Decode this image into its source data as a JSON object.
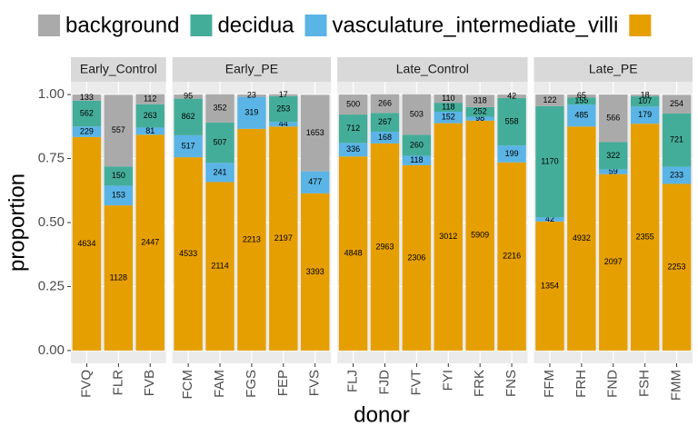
{
  "chart_data": {
    "type": "bar",
    "stacked": true,
    "x_label": "donor",
    "y_label": "proportion",
    "ylim": [
      -0.05,
      1.05
    ],
    "yticks": [
      {
        "value": 0,
        "label": "0.00"
      },
      {
        "value": 0.25,
        "label": "0.25"
      },
      {
        "value": 0.5,
        "label": "0.50"
      },
      {
        "value": 0.75,
        "label": "0.75"
      },
      {
        "value": 1,
        "label": "1.00"
      }
    ],
    "grid": true,
    "legend": "top",
    "series": [
      {
        "name": "background",
        "color": "#aaaaaa"
      },
      {
        "name": "decidua",
        "color": "#44ad99"
      },
      {
        "name": "vasculature_intermediate_villi",
        "color": "#5ab4e5"
      },
      {
        "color": "#e69f00"
      }
    ],
    "facets": [
      {
        "title": "Early_Control",
        "categories": [
          "FVQ",
          "FLR",
          "FVB"
        ],
        "series": [
          {
            "values": [
              0.024,
              0.28,
              0.039
            ],
            "counts": [
              133,
              557,
              112
            ]
          },
          {
            "values": [
              0.101,
              0.075,
              0.091
            ],
            "counts": [
              562,
              150,
              263
            ]
          },
          {
            "values": [
              0.041,
              0.077,
              0.028
            ],
            "counts": [
              229,
              153,
              81
            ]
          },
          {
            "values": [
              0.834,
              0.567,
              0.843
            ],
            "counts": [
              4634,
              1128,
              2447
            ]
          }
        ]
      },
      {
        "title": "Early_PE",
        "categories": [
          "FCM",
          "FAM",
          "FGS",
          "FEP",
          "FVS"
        ],
        "series": [
          {
            "values": [
              0.016,
              0.11,
              0.009,
              0.007,
              0.299
            ],
            "counts": [
              95,
              352,
              23,
              17,
              1653
            ]
          },
          {
            "values": [
              0.143,
              0.158,
              null,
              0.101,
              null
            ],
            "counts": [
              862,
              507,
              null,
              253,
              null
            ]
          },
          {
            "values": [
              0.086,
              0.075,
              0.125,
              0.018,
              0.086
            ],
            "counts": [
              517,
              241,
              319,
              44,
              477
            ]
          },
          {
            "values": [
              0.755,
              0.658,
              0.866,
              0.875,
              0.614
            ],
            "counts": [
              4533,
              2114,
              2213,
              2197,
              3393
            ]
          }
        ]
      },
      {
        "title": "Late_Control",
        "categories": [
          "FLJ",
          "FJD",
          "FVT",
          "FYI",
          "FRK",
          "FNS"
        ],
        "series": [
          {
            "values": [
              0.078,
              0.073,
              0.158,
              0.032,
              0.048,
              0.014
            ],
            "counts": [
              500,
              266,
              503,
              110,
              318,
              42
            ]
          },
          {
            "values": [
              0.111,
              0.073,
              0.082,
              0.035,
              0.038,
              0.185
            ],
            "counts": [
              712,
              267,
              260,
              118,
              252,
              558
            ]
          },
          {
            "values": [
              0.053,
              0.046,
              0.037,
              0.045,
              0.015,
              0.066
            ],
            "counts": [
              336,
              168,
              118,
              152,
              98,
              199
            ]
          },
          {
            "values": [
              0.758,
              0.809,
              0.724,
              0.888,
              0.898,
              0.735
            ],
            "counts": [
              4848,
              2963,
              2306,
              3012,
              5909,
              2216
            ]
          }
        ]
      },
      {
        "title": "Late_PE",
        "categories": [
          "FFM",
          "FRH",
          "FND",
          "FSH",
          "FMM"
        ],
        "series": [
          {
            "values": [
              0.045,
              0.012,
              0.186,
              0.007,
              0.073
            ],
            "counts": [
              122,
              65,
              566,
              18,
              254
            ]
          },
          {
            "values": [
              0.435,
              0.027,
              0.106,
              0.04,
              0.208
            ],
            "counts": [
              1170,
              155,
              322,
              107,
              721
            ]
          },
          {
            "values": [
              0.016,
              0.086,
              0.019,
              0.067,
              0.067
            ],
            "counts": [
              42,
              485,
              59,
              179,
              233
            ]
          },
          {
            "values": [
              0.504,
              0.875,
              0.689,
              0.886,
              0.651
            ],
            "counts": [
              1354,
              4932,
              2097,
              2355,
              2253
            ]
          }
        ]
      }
    ]
  }
}
